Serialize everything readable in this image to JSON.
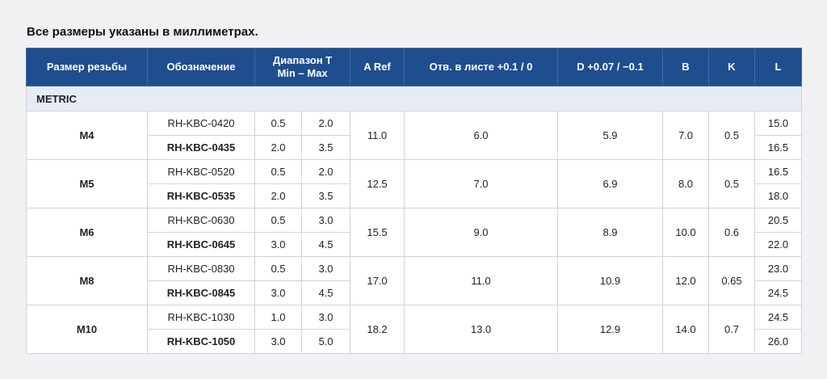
{
  "caption": "Все размеры указаны в миллиметрах.",
  "headers": {
    "thread": "Размер резьбы",
    "designation": "Обозначение",
    "range_t_line1": "Диапазон T",
    "range_t_line2": "Min – Max",
    "a_ref": "A Ref",
    "hole": "Отв. в листе +0.1 / 0",
    "d": "D +0.07 / −0.1",
    "b": "B",
    "k": "K",
    "l": "L"
  },
  "section": "METRIC",
  "groups": [
    {
      "thread": "M4",
      "a_ref": "11.0",
      "hole": "6.0",
      "d": "5.9",
      "b": "7.0",
      "k": "0.5",
      "rows": [
        {
          "designation": "RH-KBC-0420",
          "t_min": "0.5",
          "t_max": "2.0",
          "l": "15.0"
        },
        {
          "designation": "RH-KBC-0435",
          "t_min": "2.0",
          "t_max": "3.5",
          "l": "16.5"
        }
      ]
    },
    {
      "thread": "M5",
      "a_ref": "12.5",
      "hole": "7.0",
      "d": "6.9",
      "b": "8.0",
      "k": "0.5",
      "rows": [
        {
          "designation": "RH-KBC-0520",
          "t_min": "0.5",
          "t_max": "2.0",
          "l": "16.5"
        },
        {
          "designation": "RH-KBC-0535",
          "t_min": "2.0",
          "t_max": "3.5",
          "l": "18.0"
        }
      ]
    },
    {
      "thread": "M6",
      "a_ref": "15.5",
      "hole": "9.0",
      "d": "8.9",
      "b": "10.0",
      "k": "0.6",
      "rows": [
        {
          "designation": "RH-KBC-0630",
          "t_min": "0.5",
          "t_max": "3.0",
          "l": "20.5"
        },
        {
          "designation": "RH-KBC-0645",
          "t_min": "3.0",
          "t_max": "4.5",
          "l": "22.0"
        }
      ]
    },
    {
      "thread": "M8",
      "a_ref": "17.0",
      "hole": "11.0",
      "d": "10.9",
      "b": "12.0",
      "k": "0.65",
      "rows": [
        {
          "designation": "RH-KBC-0830",
          "t_min": "0.5",
          "t_max": "3.0",
          "l": "23.0"
        },
        {
          "designation": "RH-KBC-0845",
          "t_min": "3.0",
          "t_max": "4.5",
          "l": "24.5"
        }
      ]
    },
    {
      "thread": "M10",
      "a_ref": "18.2",
      "hole": "13.0",
      "d": "12.9",
      "b": "14.0",
      "k": "0.7",
      "rows": [
        {
          "designation": "RH-KBC-1030",
          "t_min": "1.0",
          "t_max": "3.0",
          "l": "24.5"
        },
        {
          "designation": "RH-KBC-1050",
          "t_min": "3.0",
          "t_max": "5.0",
          "l": "26.0"
        }
      ]
    }
  ]
}
